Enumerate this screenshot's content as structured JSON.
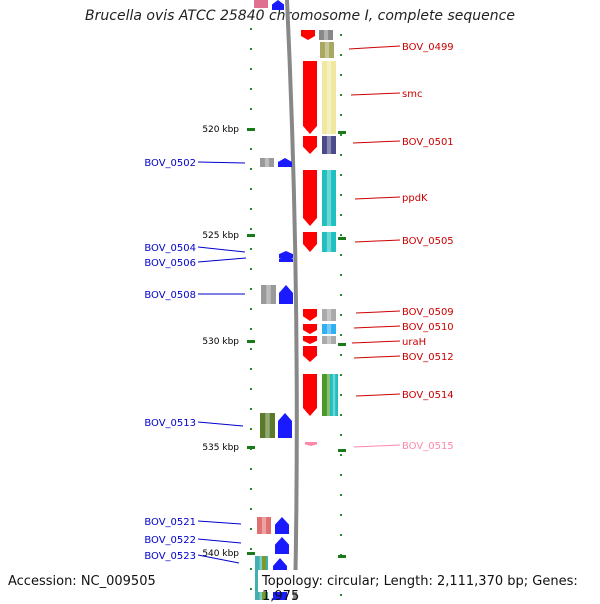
{
  "title": "Brucella ovis ATCC 25840 chromosome I, complete sequence",
  "footer": {
    "accession": "Accession: NC_009505",
    "topology": "Topology: circular; Length: 2,111,370 bp; Genes: 1,975"
  },
  "scale": {
    "unit": "kbp",
    "ticks": [
      520,
      525,
      530,
      535,
      540
    ]
  },
  "genes_forward": [
    {
      "label": "BOV_0499",
      "color": "#cc0000"
    },
    {
      "label": "smc",
      "color": "#cc0000"
    },
    {
      "label": "BOV_0501",
      "color": "#cc0000"
    },
    {
      "label": "ppdK",
      "color": "#cc0000"
    },
    {
      "label": "BOV_0505",
      "color": "#cc0000"
    },
    {
      "label": "BOV_0509",
      "color": "#cc0000"
    },
    {
      "label": "BOV_0510",
      "color": "#cc0000"
    },
    {
      "label": "uraH",
      "color": "#cc0000"
    },
    {
      "label": "BOV_0512",
      "color": "#cc0000"
    },
    {
      "label": "BOV_0514",
      "color": "#cc0000"
    },
    {
      "label": "BOV_0515",
      "color": "#ff88aa"
    }
  ],
  "genes_reverse": [
    {
      "label": "BOV_0502",
      "color": "#0000cc"
    },
    {
      "label": "BOV_0504",
      "color": "#0000cc"
    },
    {
      "label": "BOV_0506",
      "color": "#0000cc"
    },
    {
      "label": "BOV_0508",
      "color": "#0000cc"
    },
    {
      "label": "BOV_0513",
      "color": "#0000cc"
    },
    {
      "label": "BOV_0521",
      "color": "#0000cc"
    },
    {
      "label": "BOV_0522",
      "color": "#0000cc"
    },
    {
      "label": "BOV_0523",
      "color": "#0000cc"
    }
  ]
}
